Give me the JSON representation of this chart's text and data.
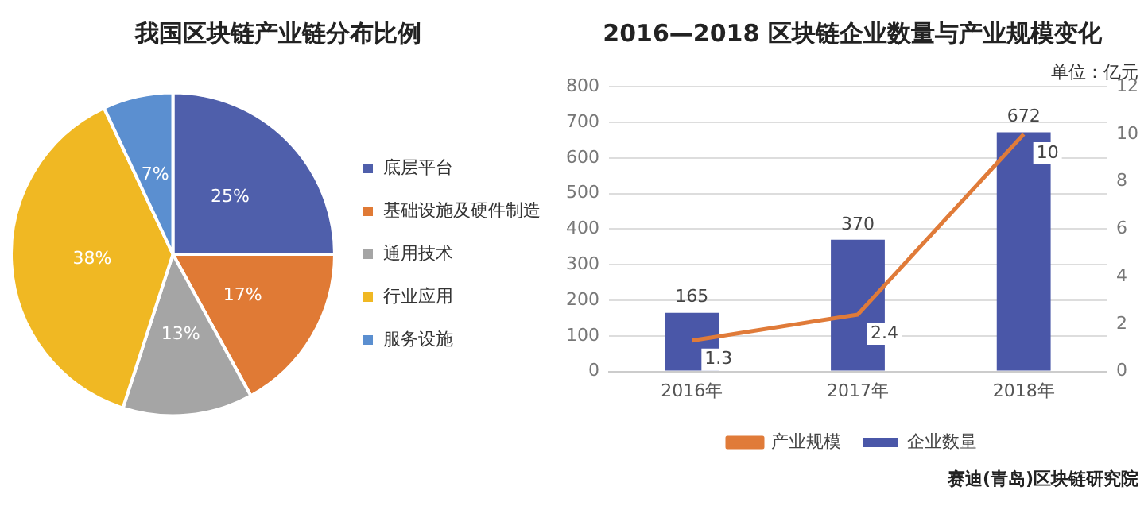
{
  "chart_data": [
    {
      "type": "pie",
      "title": "我国区块链产业链分布比例",
      "categories": [
        "底层平台",
        "基础设施及硬件制造",
        "通用技术",
        "行业应用",
        "服务设施"
      ],
      "values": [
        25,
        17,
        13,
        38,
        7
      ],
      "colors": [
        "#4f5fab",
        "#e07a35",
        "#a5a5a5",
        "#f0b823",
        "#5b8fd0"
      ],
      "value_labels": [
        "25%",
        "17%",
        "13%",
        "38%",
        "7%"
      ],
      "legend": "right"
    },
    {
      "type": "bar",
      "title": "2016—2018 区块链企业数量与产业规模变化",
      "y2label": "单位：亿元",
      "categories": [
        "2016年",
        "2017年",
        "2018年"
      ],
      "series": [
        {
          "name": "企业数量",
          "type": "bar",
          "color": "#4a57a8",
          "values": [
            165,
            370,
            672
          ]
        },
        {
          "name": "产业规模",
          "type": "line",
          "axis": "y2",
          "color": "#e07b39",
          "values": [
            1.3,
            2.4,
            10
          ]
        }
      ],
      "ylim": [
        0,
        800
      ],
      "yticks": [
        0,
        100,
        200,
        300,
        400,
        500,
        600,
        700,
        800
      ],
      "y2lim": [
        0,
        12
      ],
      "y2ticks": [
        0,
        2,
        4,
        6,
        8,
        10,
        12
      ],
      "grid": "y",
      "legend": "bottom",
      "data_labels": true,
      "marker": "none",
      "annotations": [
        "赛迪(青岛)区块链研究院"
      ]
    }
  ]
}
